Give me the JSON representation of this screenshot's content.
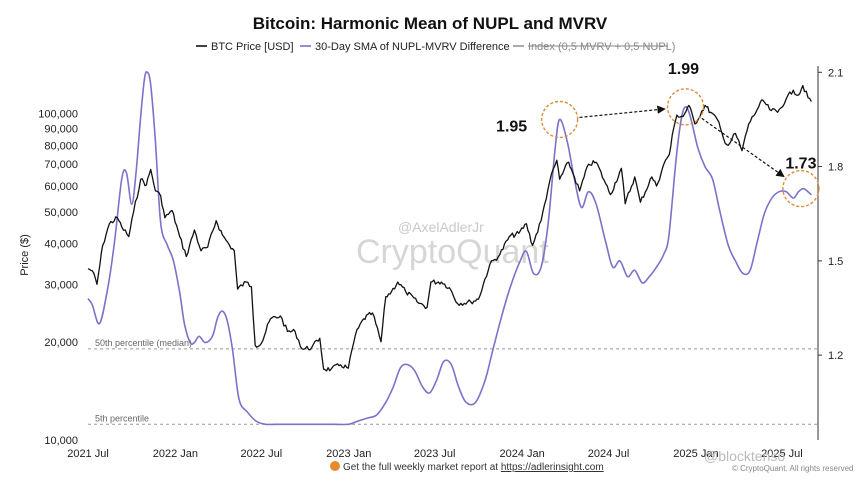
{
  "chart_data": {
    "type": "line",
    "title": "Bitcoin: Harmonic Mean of NUPL and MVRV",
    "legend": [
      {
        "label": "BTC Price [USD]",
        "color": "#111111",
        "style": "solid"
      },
      {
        "label": "30-Day SMA of NUPL-MVRV Difference",
        "color": "#7b72c9",
        "style": "solid"
      },
      {
        "label": "Index (0,5 MVRV + 0,5 NUPL)",
        "color": "#888888",
        "style": "strikethrough"
      }
    ],
    "ylabel_left": "Price ($)",
    "left_axis": {
      "scale": "log",
      "ylim": [
        10000,
        140000
      ],
      "ticks": [
        {
          "value": 10000,
          "label": "10,000"
        },
        {
          "value": 20000,
          "label": "20,000"
        },
        {
          "value": 30000,
          "label": "30,000"
        },
        {
          "value": 40000,
          "label": "40,000"
        },
        {
          "value": 50000,
          "label": "50,000"
        },
        {
          "value": 60000,
          "label": "60,000"
        },
        {
          "value": 70000,
          "label": "70,000"
        },
        {
          "value": 80000,
          "label": "80,000"
        },
        {
          "value": 90000,
          "label": "90,000"
        },
        {
          "value": 100000,
          "label": "100,000"
        }
      ]
    },
    "right_axis": {
      "scale": "linear",
      "ylim": [
        0.93,
        2.12
      ],
      "ticks": [
        {
          "value": 1.2,
          "label": "1.2"
        },
        {
          "value": 1.5,
          "label": "1.5"
        },
        {
          "value": 1.8,
          "label": "1.8"
        },
        {
          "value": 2.1,
          "label": "2.1"
        }
      ]
    },
    "x_axis": {
      "range": [
        "2021-07-01",
        "2025-09-15"
      ],
      "ticks": [
        {
          "date": "2021-07-01",
          "label": "2021 Jul"
        },
        {
          "date": "2022-01-01",
          "label": "2022 Jan"
        },
        {
          "date": "2022-07-01",
          "label": "2022 Jul"
        },
        {
          "date": "2023-01-01",
          "label": "2023 Jan"
        },
        {
          "date": "2023-07-01",
          "label": "2023 Jul"
        },
        {
          "date": "2024-01-01",
          "label": "2024 Jan"
        },
        {
          "date": "2024-07-01",
          "label": "2024 Jul"
        },
        {
          "date": "2025-01-01",
          "label": "2025 Jan"
        },
        {
          "date": "2025-07-01",
          "label": "2025 Jul"
        }
      ]
    },
    "grid": false,
    "reference_lines": [
      {
        "label": "50th percentile (median)",
        "axis": "right",
        "value": 1.22
      },
      {
        "label": "5th percentile",
        "axis": "right",
        "value": 0.98
      }
    ],
    "annotations": [
      {
        "label": "1.95",
        "date": "2024-03-20",
        "value": 1.95
      },
      {
        "label": "1.99",
        "date": "2024-12-10",
        "value": 1.99
      },
      {
        "label": "1.73",
        "date": "2025-08-10",
        "value": 1.73
      }
    ],
    "series": [
      {
        "name": "BTC Price [USD]",
        "axis": "left",
        "color": "#111111",
        "points": [
          [
            "2021-07-01",
            33500
          ],
          [
            "2021-07-10",
            33000
          ],
          [
            "2021-07-20",
            30000
          ],
          [
            "2021-08-01",
            39500
          ],
          [
            "2021-08-15",
            46000
          ],
          [
            "2021-09-01",
            48000
          ],
          [
            "2021-09-10",
            45000
          ],
          [
            "2021-09-25",
            42000
          ],
          [
            "2021-10-05",
            50000
          ],
          [
            "2021-10-20",
            63000
          ],
          [
            "2021-11-01",
            60500
          ],
          [
            "2021-11-10",
            67500
          ],
          [
            "2021-11-20",
            58000
          ],
          [
            "2021-12-01",
            56000
          ],
          [
            "2021-12-10",
            48000
          ],
          [
            "2021-12-25",
            50500
          ],
          [
            "2022-01-10",
            42000
          ],
          [
            "2022-01-24",
            36500
          ],
          [
            "2022-02-10",
            44000
          ],
          [
            "2022-02-24",
            38000
          ],
          [
            "2022-03-10",
            39000
          ],
          [
            "2022-03-28",
            47000
          ],
          [
            "2022-04-10",
            42500
          ],
          [
            "2022-04-25",
            39500
          ],
          [
            "2022-05-05",
            38000
          ],
          [
            "2022-05-12",
            29000
          ],
          [
            "2022-05-30",
            30500
          ],
          [
            "2022-06-10",
            29500
          ],
          [
            "2022-06-18",
            19500
          ],
          [
            "2022-07-01",
            19800
          ],
          [
            "2022-07-20",
            23500
          ],
          [
            "2022-08-10",
            24000
          ],
          [
            "2022-08-25",
            21500
          ],
          [
            "2022-09-10",
            21500
          ],
          [
            "2022-09-25",
            19000
          ],
          [
            "2022-10-15",
            19200
          ],
          [
            "2022-11-01",
            20500
          ],
          [
            "2022-11-09",
            16500
          ],
          [
            "2022-11-25",
            16500
          ],
          [
            "2022-12-15",
            17000
          ],
          [
            "2022-12-31",
            16600
          ],
          [
            "2023-01-15",
            21000
          ],
          [
            "2023-02-01",
            23500
          ],
          [
            "2023-02-20",
            24500
          ],
          [
            "2023-03-10",
            20000
          ],
          [
            "2023-03-20",
            27500
          ],
          [
            "2023-04-01",
            28500
          ],
          [
            "2023-04-14",
            30500
          ],
          [
            "2023-05-01",
            28500
          ],
          [
            "2023-05-25",
            26500
          ],
          [
            "2023-06-15",
            25500
          ],
          [
            "2023-06-23",
            30500
          ],
          [
            "2023-07-15",
            30500
          ],
          [
            "2023-08-01",
            29300
          ],
          [
            "2023-08-18",
            26200
          ],
          [
            "2023-09-15",
            26500
          ],
          [
            "2023-10-01",
            27000
          ],
          [
            "2023-10-25",
            34500
          ],
          [
            "2023-11-15",
            37000
          ],
          [
            "2023-12-05",
            42000
          ],
          [
            "2023-12-25",
            43000
          ],
          [
            "2024-01-10",
            46000
          ],
          [
            "2024-01-23",
            39500
          ],
          [
            "2024-02-10",
            47000
          ],
          [
            "2024-02-28",
            62000
          ],
          [
            "2024-03-14",
            72000
          ],
          [
            "2024-03-20",
            63000
          ],
          [
            "2024-04-08",
            71000
          ],
          [
            "2024-04-20",
            64000
          ],
          [
            "2024-05-01",
            58000
          ],
          [
            "2024-05-20",
            70000
          ],
          [
            "2024-06-05",
            71000
          ],
          [
            "2024-06-25",
            61000
          ],
          [
            "2024-07-05",
            56500
          ],
          [
            "2024-07-28",
            68000
          ],
          [
            "2024-08-05",
            53000
          ],
          [
            "2024-08-25",
            64000
          ],
          [
            "2024-09-06",
            53500
          ],
          [
            "2024-09-30",
            64000
          ],
          [
            "2024-10-10",
            60000
          ],
          [
            "2024-10-29",
            72000
          ],
          [
            "2024-11-06",
            75000
          ],
          [
            "2024-11-15",
            90000
          ],
          [
            "2024-11-22",
            99000
          ],
          [
            "2024-12-05",
            98000
          ],
          [
            "2024-12-17",
            106000
          ],
          [
            "2024-12-30",
            93000
          ],
          [
            "2025-01-20",
            106000
          ],
          [
            "2025-02-01",
            101000
          ],
          [
            "2025-02-15",
            96000
          ],
          [
            "2025-02-28",
            84000
          ],
          [
            "2025-03-10",
            80000
          ],
          [
            "2025-03-25",
            87000
          ],
          [
            "2025-04-08",
            77000
          ],
          [
            "2025-04-22",
            93000
          ],
          [
            "2025-05-10",
            103000
          ],
          [
            "2025-05-22",
            110000
          ],
          [
            "2025-06-05",
            103000
          ],
          [
            "2025-06-22",
            101000
          ],
          [
            "2025-07-10",
            111000
          ],
          [
            "2025-07-25",
            118000
          ],
          [
            "2025-08-05",
            114000
          ],
          [
            "2025-08-14",
            122000
          ],
          [
            "2025-08-25",
            112000
          ],
          [
            "2025-09-01",
            109000
          ]
        ]
      },
      {
        "name": "30-Day SMA of NUPL-MVRV Difference",
        "axis": "right",
        "color": "#7b72c9",
        "points": [
          [
            "2021-07-01",
            1.38
          ],
          [
            "2021-07-10",
            1.36
          ],
          [
            "2021-07-25",
            1.3
          ],
          [
            "2021-08-10",
            1.4
          ],
          [
            "2021-08-25",
            1.55
          ],
          [
            "2021-09-10",
            1.76
          ],
          [
            "2021-09-20",
            1.78
          ],
          [
            "2021-10-01",
            1.68
          ],
          [
            "2021-10-10",
            1.78
          ],
          [
            "2021-10-20",
            1.96
          ],
          [
            "2021-10-28",
            2.08
          ],
          [
            "2021-11-03",
            2.1
          ],
          [
            "2021-11-10",
            2.06
          ],
          [
            "2021-11-20",
            1.88
          ],
          [
            "2021-12-01",
            1.62
          ],
          [
            "2021-12-15",
            1.55
          ],
          [
            "2021-12-28",
            1.5
          ],
          [
            "2022-01-10",
            1.4
          ],
          [
            "2022-01-20",
            1.3
          ],
          [
            "2022-02-01",
            1.24
          ],
          [
            "2022-02-10",
            1.24
          ],
          [
            "2022-02-20",
            1.26
          ],
          [
            "2022-03-05",
            1.24
          ],
          [
            "2022-03-20",
            1.26
          ],
          [
            "2022-03-31",
            1.32
          ],
          [
            "2022-04-10",
            1.34
          ],
          [
            "2022-04-20",
            1.31
          ],
          [
            "2022-05-01",
            1.22
          ],
          [
            "2022-05-15",
            1.06
          ],
          [
            "2022-06-01",
            1.02
          ],
          [
            "2022-06-20",
            0.99
          ],
          [
            "2022-07-10",
            0.98
          ],
          [
            "2022-08-01",
            0.98
          ],
          [
            "2022-09-01",
            0.98
          ],
          [
            "2022-10-01",
            0.98
          ],
          [
            "2022-11-01",
            0.98
          ],
          [
            "2022-12-01",
            0.98
          ],
          [
            "2022-12-31",
            0.98
          ],
          [
            "2023-01-20",
            0.99
          ],
          [
            "2023-02-10",
            1.0
          ],
          [
            "2023-03-01",
            1.01
          ],
          [
            "2023-03-20",
            1.05
          ],
          [
            "2023-04-05",
            1.1
          ],
          [
            "2023-04-20",
            1.16
          ],
          [
            "2023-05-05",
            1.17
          ],
          [
            "2023-05-20",
            1.15
          ],
          [
            "2023-06-05",
            1.1
          ],
          [
            "2023-06-20",
            1.08
          ],
          [
            "2023-07-05",
            1.12
          ],
          [
            "2023-07-20",
            1.18
          ],
          [
            "2023-08-05",
            1.17
          ],
          [
            "2023-08-20",
            1.1
          ],
          [
            "2023-09-05",
            1.05
          ],
          [
            "2023-09-25",
            1.05
          ],
          [
            "2023-10-15",
            1.12
          ],
          [
            "2023-11-01",
            1.22
          ],
          [
            "2023-11-20",
            1.33
          ],
          [
            "2023-12-10",
            1.43
          ],
          [
            "2023-12-28",
            1.5
          ],
          [
            "2024-01-10",
            1.53
          ],
          [
            "2024-01-25",
            1.46
          ],
          [
            "2024-02-10",
            1.48
          ],
          [
            "2024-02-25",
            1.62
          ],
          [
            "2024-03-10",
            1.85
          ],
          [
            "2024-03-20",
            1.95
          ],
          [
            "2024-04-05",
            1.88
          ],
          [
            "2024-04-20",
            1.76
          ],
          [
            "2024-05-05",
            1.67
          ],
          [
            "2024-05-20",
            1.72
          ],
          [
            "2024-06-05",
            1.68
          ],
          [
            "2024-06-25",
            1.56
          ],
          [
            "2024-07-10",
            1.48
          ],
          [
            "2024-07-25",
            1.5
          ],
          [
            "2024-08-10",
            1.45
          ],
          [
            "2024-08-25",
            1.47
          ],
          [
            "2024-09-10",
            1.43
          ],
          [
            "2024-09-25",
            1.45
          ],
          [
            "2024-10-10",
            1.48
          ],
          [
            "2024-10-25",
            1.52
          ],
          [
            "2024-11-05",
            1.58
          ],
          [
            "2024-11-20",
            1.82
          ],
          [
            "2024-12-01",
            1.95
          ],
          [
            "2024-12-10",
            1.99
          ],
          [
            "2024-12-20",
            1.96
          ],
          [
            "2025-01-05",
            1.86
          ],
          [
            "2025-01-20",
            1.8
          ],
          [
            "2025-02-05",
            1.76
          ],
          [
            "2025-02-20",
            1.66
          ],
          [
            "2025-03-10",
            1.55
          ],
          [
            "2025-03-25",
            1.5
          ],
          [
            "2025-04-10",
            1.46
          ],
          [
            "2025-04-25",
            1.47
          ],
          [
            "2025-05-10",
            1.56
          ],
          [
            "2025-05-25",
            1.65
          ],
          [
            "2025-06-10",
            1.7
          ],
          [
            "2025-06-25",
            1.72
          ],
          [
            "2025-07-10",
            1.72
          ],
          [
            "2025-07-25",
            1.7
          ],
          [
            "2025-08-05",
            1.72
          ],
          [
            "2025-08-15",
            1.73
          ],
          [
            "2025-08-25",
            1.72
          ],
          [
            "2025-09-01",
            1.71
          ]
        ]
      }
    ],
    "watermarks": [
      "@AxelAdlerJr",
      "CryptoQuant"
    ]
  },
  "footer": {
    "text": "Get the full weekly market report at ",
    "link": "https://adlerinsight.com",
    "copyright": "© CryptoQuant. All rights reserved",
    "corner_handle": "@blocktenso"
  },
  "colors": {
    "price": "#111111",
    "sma": "#7b72c9",
    "index": "#888888",
    "highlight": "#e08a3c",
    "footer_icon": "#e58a2e"
  }
}
